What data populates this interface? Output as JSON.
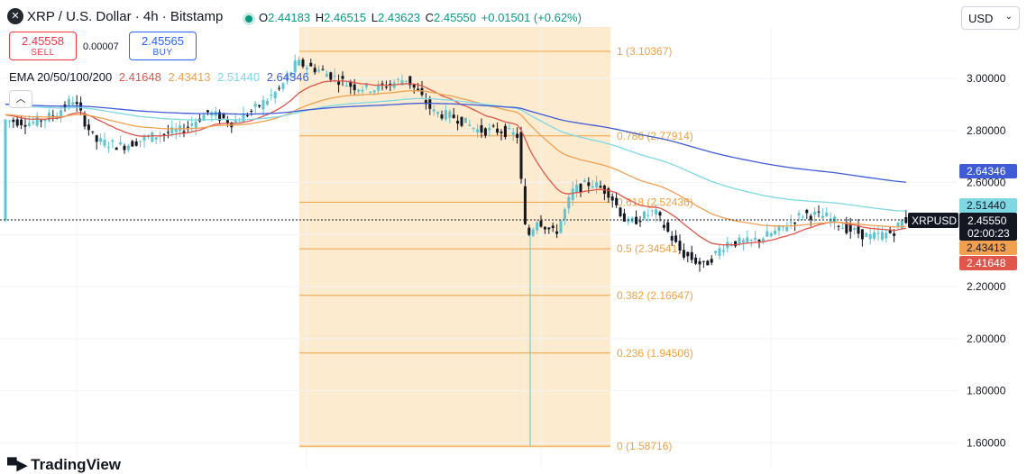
{
  "header": {
    "symbol_title": "XRP / U.S. Dollar · 4h · Bitstamp",
    "open_label": "O",
    "open": "2.44183",
    "high_label": "H",
    "high": "2.46515",
    "low_label": "L",
    "low": "2.43623",
    "close_label": "C",
    "close": "2.45550",
    "change": "+0.01501 (+0.62%)"
  },
  "trade": {
    "sell_price": "2.45558",
    "sell_label": "SELL",
    "spread": "0.00007",
    "buy_price": "2.45565",
    "buy_label": "BUY"
  },
  "ema": {
    "label": "EMA 20/50/100/200",
    "v20": "2.41648",
    "v50": "2.43413",
    "v100": "2.51440",
    "v200": "2.64346"
  },
  "currency_select": {
    "value": "USD"
  },
  "price_axis": {
    "ticks": [
      "3.00000",
      "2.80000",
      "2.60000",
      "2.20000",
      "2.00000",
      "1.80000",
      "1.60000"
    ],
    "badges": {
      "ema200": "2.64346",
      "ema100": "2.51440",
      "price": "2.45550",
      "countdown": "02:00:23",
      "symbol": "XRPUSD",
      "ema50": "2.43413",
      "ema20": "2.41648"
    }
  },
  "fib_levels": [
    {
      "label": "1 (3.10367)",
      "price": 3.10367
    },
    {
      "label": "0.786 (2.77914)",
      "price": 2.77914
    },
    {
      "label": "0.618 (2.52436)",
      "price": 2.52436
    },
    {
      "label": "0.5 (2.34541)",
      "price": 2.34541
    },
    {
      "label": "0.382 (2.16647)",
      "price": 2.16647
    },
    {
      "label": "0.236 (1.94506)",
      "price": 1.94506
    },
    {
      "label": "0 (1.58716)",
      "price": 1.58716
    }
  ],
  "brand": {
    "logo_text": "TradingView"
  },
  "colors": {
    "up": "#089981",
    "down": "#131722",
    "ema20": "#e0564a",
    "ema50": "#f0a050",
    "ema100": "#7dd8e4",
    "ema200": "#3f5bd6",
    "fib": "#f0a040",
    "fib_zone": "#fde8c8"
  },
  "chart_data": {
    "type": "candlestick",
    "symbol": "XRPUSD",
    "interval": "4h",
    "exchange": "Bitstamp",
    "y_range": [
      1.55,
      3.25
    ],
    "last_candle": {
      "open": 2.44183,
      "high": 2.46515,
      "low": 2.43623,
      "close": 2.4555
    },
    "series": [
      {
        "name": "EMA 20",
        "last": 2.41648
      },
      {
        "name": "EMA 50",
        "last": 2.43413
      },
      {
        "name": "EMA 100",
        "last": 2.5144
      },
      {
        "name": "EMA 200",
        "last": 2.64346
      }
    ],
    "fibonacci": {
      "high": 3.10367,
      "low": 1.58716
    }
  }
}
